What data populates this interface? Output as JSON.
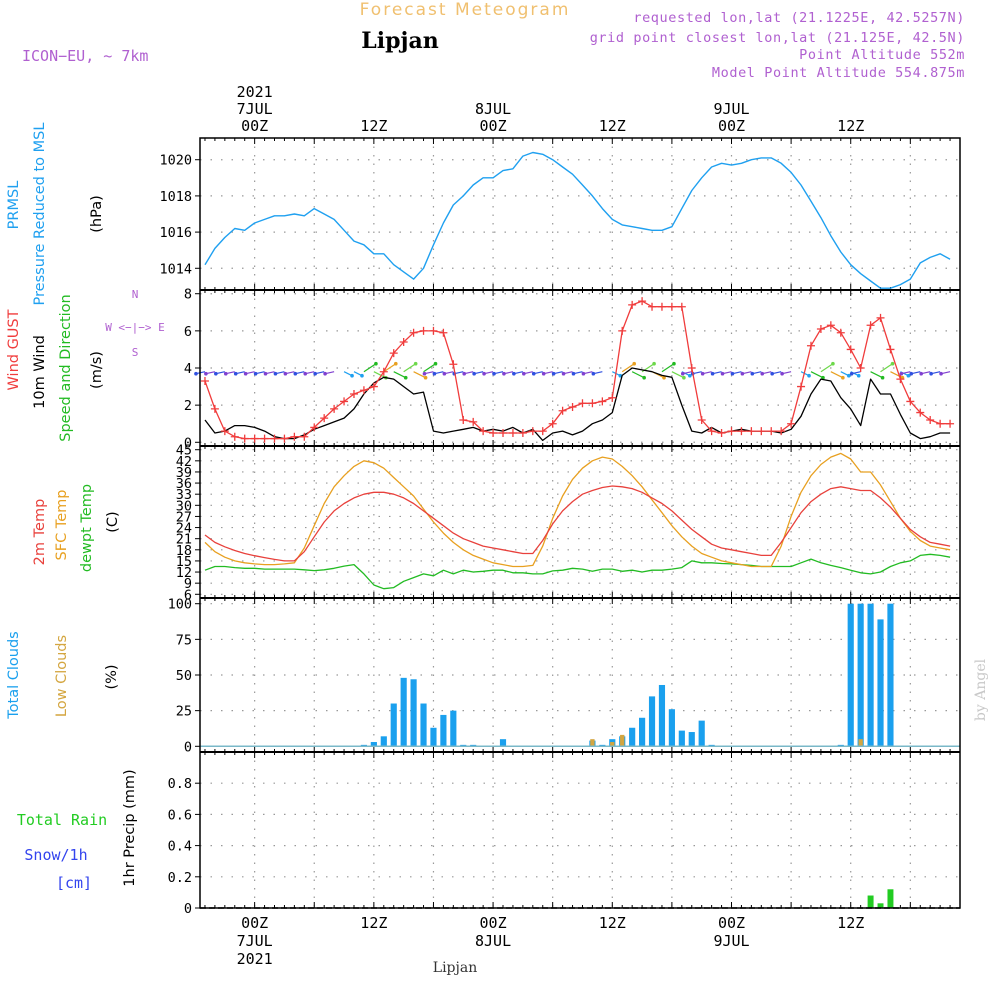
{
  "header": {
    "title": "Forecast Meteogram",
    "location": "Lipjan",
    "model": "ICON−EU, ~ 7km",
    "info_lines": [
      "requested lon,lat (21.1225E, 42.5257N)",
      "grid point closest lon,lat (21.125E, 42.5N)",
      "Point Altitude 552m",
      "Model Point Altitude 554.875m"
    ],
    "footer_location": "Lipjan",
    "credit": "by Angel"
  },
  "time_axis": {
    "top_labels": [
      {
        "hour": 0,
        "lines": [
          "2021",
          "7JUL",
          "00Z"
        ]
      },
      {
        "hour": 12,
        "lines": [
          "12Z"
        ]
      },
      {
        "hour": 24,
        "lines": [
          "8JUL",
          "00Z"
        ]
      },
      {
        "hour": 36,
        "lines": [
          "12Z"
        ]
      },
      {
        "hour": 48,
        "lines": [
          "9JUL",
          "00Z"
        ]
      },
      {
        "hour": 60,
        "lines": [
          "12Z"
        ]
      }
    ],
    "bottom_labels": [
      {
        "hour": 0,
        "lines": [
          "00Z",
          "7JUL",
          "2021"
        ]
      },
      {
        "hour": 12,
        "lines": [
          "12Z"
        ]
      },
      {
        "hour": 24,
        "lines": [
          "00Z",
          "8JUL"
        ]
      },
      {
        "hour": 36,
        "lines": [
          "12Z"
        ]
      },
      {
        "hour": 48,
        "lines": [
          "00Z",
          "9JUL"
        ]
      },
      {
        "hour": 60,
        "lines": [
          "12Z"
        ]
      }
    ],
    "hour_range": [
      -5.5,
      71
    ]
  },
  "colors": {
    "pressure": "#1fa0f0",
    "gust": "#f03c3c",
    "wind": "#000000",
    "temp2m": "#e8413c",
    "sfc_temp": "#e8a020",
    "dewpt": "#22bb22",
    "total_cloud": "#1aa0ee",
    "low_cloud": "#d4a640",
    "rain": "#22cc22",
    "snow": "#3344ee",
    "model": "#b060d0",
    "title": "#f0c070",
    "dir_compass": "#b060d0"
  },
  "chart_data": [
    {
      "type": "line",
      "panel": "pressure",
      "side_labels": [
        "PRMSL",
        "Pressure Reduced to MSL"
      ],
      "unit": "(hPa)",
      "ylim": [
        1012.8,
        1021.2
      ],
      "yticks": [
        1014,
        1016,
        1018,
        1020
      ],
      "grid": true,
      "series": [
        {
          "name": "PRMSL",
          "x": [
            -5,
            -4,
            -3,
            -2,
            -1,
            0,
            1,
            2,
            3,
            4,
            5,
            6,
            7,
            8,
            9,
            10,
            11,
            12,
            13,
            14,
            15,
            16,
            17,
            18,
            19,
            20,
            21,
            22,
            23,
            24,
            25,
            26,
            27,
            28,
            29,
            30,
            31,
            32,
            33,
            34,
            35,
            36,
            37,
            38,
            39,
            40,
            41,
            42,
            43,
            44,
            45,
            46,
            47,
            48,
            49,
            50,
            51,
            52,
            53,
            54,
            55,
            56,
            57,
            58,
            59,
            60,
            61,
            62,
            63,
            64,
            65,
            66,
            67,
            68,
            69,
            70
          ],
          "y": [
            1014.2,
            1015.1,
            1015.7,
            1016.2,
            1016.1,
            1016.5,
            1016.7,
            1016.9,
            1016.9,
            1017.0,
            1016.9,
            1017.3,
            1017.0,
            1016.7,
            1016.1,
            1015.5,
            1015.3,
            1014.8,
            1014.8,
            1014.2,
            1013.8,
            1013.4,
            1014.0,
            1015.3,
            1016.5,
            1017.5,
            1018.0,
            1018.6,
            1019.0,
            1019.0,
            1019.4,
            1019.5,
            1020.2,
            1020.4,
            1020.3,
            1020.0,
            1019.6,
            1019.2,
            1018.6,
            1018.0,
            1017.3,
            1016.7,
            1016.4,
            1016.3,
            1016.2,
            1016.1,
            1016.1,
            1016.3,
            1017.3,
            1018.3,
            1019.0,
            1019.6,
            1019.8,
            1019.7,
            1019.8,
            1020.0,
            1020.1,
            1020.1,
            1019.8,
            1019.3,
            1018.6,
            1017.7,
            1016.8,
            1015.8,
            1014.9,
            1014.2,
            1013.7,
            1013.3,
            1012.9,
            1012.9,
            1013.1,
            1013.4,
            1014.3,
            1014.6,
            1014.8,
            1014.5
          ]
        }
      ]
    },
    {
      "type": "line",
      "panel": "wind",
      "side_labels": [
        "Wind GUST",
        "10m Wind",
        "Speed and Direction"
      ],
      "unit": "(m/s)",
      "compass": [
        "N",
        "W <−|−> E",
        "S"
      ],
      "ylim": [
        -0.2,
        8.2
      ],
      "yticks": [
        0,
        2,
        4,
        6,
        8
      ],
      "grid": true,
      "x": [
        -5,
        -4,
        -3,
        -2,
        -1,
        0,
        1,
        2,
        3,
        4,
        5,
        6,
        7,
        8,
        9,
        10,
        11,
        12,
        13,
        14,
        15,
        16,
        17,
        18,
        19,
        20,
        21,
        22,
        23,
        24,
        25,
        26,
        27,
        28,
        29,
        30,
        31,
        32,
        33,
        34,
        35,
        36,
        37,
        38,
        39,
        40,
        41,
        42,
        43,
        44,
        45,
        46,
        47,
        48,
        49,
        50,
        51,
        52,
        53,
        54,
        55,
        56,
        57,
        58,
        59,
        60,
        61,
        62,
        63,
        64,
        65,
        66,
        67,
        68,
        69,
        70
      ],
      "series": [
        {
          "name": "Wind GUST",
          "y": [
            3.3,
            1.8,
            0.6,
            0.3,
            0.2,
            0.2,
            0.2,
            0.2,
            0.2,
            0.3,
            0.3,
            0.8,
            1.3,
            1.8,
            2.2,
            2.6,
            2.8,
            3.0,
            3.8,
            4.8,
            5.4,
            5.9,
            6.0,
            6.0,
            5.9,
            4.2,
            1.2,
            1.1,
            0.6,
            0.5,
            0.5,
            0.5,
            0.5,
            0.6,
            0.6,
            1.0,
            1.7,
            1.9,
            2.1,
            2.1,
            2.2,
            2.4,
            6.0,
            7.4,
            7.6,
            7.3,
            7.3,
            7.3,
            7.3,
            4.0,
            1.2,
            0.6,
            0.5,
            0.6,
            0.6,
            0.6,
            0.6,
            0.6,
            0.6,
            1.0,
            3.0,
            5.2,
            6.1,
            6.3,
            5.9,
            5.0,
            4.0,
            6.3,
            6.7,
            5.0,
            3.4,
            2.2,
            1.6,
            1.2,
            1.0,
            1.0
          ]
        },
        {
          "name": "10m Wind",
          "y": [
            1.2,
            0.5,
            0.6,
            0.9,
            0.9,
            0.8,
            0.6,
            0.3,
            0.2,
            0.2,
            0.4,
            0.7,
            0.9,
            1.1,
            1.3,
            1.8,
            2.6,
            3.2,
            3.5,
            3.4,
            3.0,
            2.6,
            2.7,
            0.6,
            0.5,
            0.6,
            0.7,
            0.8,
            0.6,
            0.7,
            0.6,
            0.8,
            0.5,
            0.7,
            0.1,
            0.5,
            0.6,
            0.4,
            0.6,
            1.0,
            1.2,
            1.6,
            3.6,
            4.0,
            3.9,
            3.8,
            3.6,
            3.5,
            2.0,
            0.6,
            0.5,
            0.8,
            0.5,
            0.6,
            0.7,
            0.6,
            0.6,
            0.6,
            0.5,
            0.7,
            1.4,
            2.6,
            3.4,
            3.3,
            2.4,
            1.8,
            0.9,
            3.4,
            2.6,
            2.6,
            1.5,
            0.5,
            0.2,
            0.3,
            0.5,
            0.5
          ]
        }
      ],
      "barb_level": 3.8
    },
    {
      "type": "line",
      "panel": "temperature",
      "side_labels": [
        "2m Temp",
        "SFC Temp",
        "dewpt Temp"
      ],
      "unit": "(C)",
      "ylim": [
        5,
        46
      ],
      "yticks": [
        6,
        9,
        12,
        15,
        18,
        21,
        24,
        27,
        30,
        33,
        36,
        39,
        42,
        45
      ],
      "grid": true,
      "x": [
        -5,
        -4,
        -3,
        -2,
        -1,
        0,
        1,
        2,
        3,
        4,
        5,
        6,
        7,
        8,
        9,
        10,
        11,
        12,
        13,
        14,
        15,
        16,
        17,
        18,
        19,
        20,
        21,
        22,
        23,
        24,
        25,
        26,
        27,
        28,
        29,
        30,
        31,
        32,
        33,
        34,
        35,
        36,
        37,
        38,
        39,
        40,
        41,
        42,
        43,
        44,
        45,
        46,
        47,
        48,
        49,
        50,
        51,
        52,
        53,
        54,
        55,
        56,
        57,
        58,
        59,
        60,
        61,
        62,
        63,
        64,
        65,
        66,
        67,
        68,
        69,
        70
      ],
      "series": [
        {
          "name": "2m Temp",
          "y": [
            22,
            20,
            18.8,
            17.8,
            17.0,
            16.4,
            15.9,
            15.4,
            15.0,
            15.0,
            17.5,
            21.5,
            25.5,
            28.5,
            30.5,
            32.0,
            33.0,
            33.5,
            33.5,
            33.0,
            32.0,
            30.5,
            28.5,
            26.5,
            24.5,
            22.5,
            21.0,
            20.0,
            19.0,
            18.5,
            18.0,
            17.5,
            17.0,
            17.0,
            20.5,
            25.0,
            28.5,
            31.0,
            33.0,
            34.0,
            34.8,
            35.2,
            35.0,
            34.5,
            33.5,
            32.0,
            30.5,
            28.5,
            26.0,
            23.5,
            21.5,
            19.5,
            18.5,
            18.0,
            17.5,
            17.0,
            16.5,
            16.5,
            20.0,
            24.0,
            28.0,
            31.0,
            33.0,
            34.5,
            35.0,
            34.5,
            34.0,
            34.0,
            32.0,
            29.5,
            26.5,
            23.5,
            21.5,
            20.0,
            19.5,
            19.0
          ]
        },
        {
          "name": "SFC Temp",
          "y": [
            20,
            17.5,
            16.0,
            15.0,
            14.5,
            14.2,
            14.0,
            14.0,
            14.2,
            14.5,
            18.5,
            24.5,
            30.5,
            35.0,
            38.0,
            40.5,
            42.0,
            41.5,
            40.0,
            37.5,
            35.0,
            32.5,
            29.0,
            25.5,
            22.5,
            20.0,
            18.0,
            16.5,
            15.5,
            14.5,
            14.0,
            13.5,
            13.5,
            13.8,
            19.0,
            26.5,
            32.5,
            37.0,
            40.0,
            42.0,
            43.0,
            42.5,
            40.5,
            38.0,
            35.0,
            31.5,
            28.0,
            24.5,
            21.5,
            19.0,
            17.0,
            16.0,
            15.0,
            14.5,
            14.0,
            13.5,
            13.5,
            13.5,
            19.0,
            27.0,
            33.5,
            38.0,
            41.0,
            43.0,
            44.0,
            42.5,
            39.0,
            39.0,
            35.5,
            31.0,
            26.5,
            23.0,
            20.5,
            19.0,
            18.5,
            18.0
          ]
        },
        {
          "name": "dewpt Temp",
          "y": [
            12.5,
            13.5,
            13.5,
            13.2,
            13.0,
            13.0,
            12.8,
            12.8,
            12.8,
            12.8,
            12.6,
            12.4,
            12.6,
            13.0,
            13.6,
            14.0,
            11.5,
            8.5,
            7.5,
            7.8,
            9.5,
            10.5,
            11.5,
            11.0,
            12.5,
            11.5,
            12.5,
            12.0,
            12.2,
            12.5,
            12.5,
            11.8,
            11.8,
            11.5,
            11.5,
            12.3,
            12.5,
            13.0,
            12.8,
            12.2,
            12.8,
            12.8,
            12.2,
            12.5,
            12.0,
            12.5,
            12.5,
            12.8,
            13.2,
            15.0,
            14.5,
            14.5,
            14.3,
            14.2,
            14.0,
            13.8,
            13.5,
            13.5,
            13.5,
            13.5,
            14.5,
            15.5,
            14.5,
            13.8,
            13.2,
            12.5,
            11.8,
            11.5,
            12.0,
            13.5,
            14.5,
            15.0,
            16.5,
            16.8,
            16.5,
            16.0
          ]
        }
      ]
    },
    {
      "type": "bar",
      "panel": "clouds",
      "side_labels": [
        "Total Clouds",
        "Low Clouds"
      ],
      "unit": "(%)",
      "ylim": [
        -4,
        104
      ],
      "yticks": [
        0,
        25,
        50,
        75,
        100
      ],
      "grid": true,
      "series": [
        {
          "name": "Total Clouds",
          "x": [
            11,
            12,
            13,
            14,
            15,
            16,
            17,
            18,
            19,
            20,
            21,
            22,
            25,
            34,
            35,
            36,
            37,
            38,
            39,
            40,
            41,
            42,
            43,
            44,
            45,
            46,
            59,
            60,
            61,
            62,
            63,
            64
          ],
          "y": [
            1,
            3,
            7,
            30,
            48,
            47,
            30,
            13,
            22,
            25,
            1,
            1,
            5,
            4,
            1,
            5,
            7,
            13,
            20,
            35,
            43,
            26,
            11,
            10,
            18,
            1,
            1,
            100,
            100,
            100,
            89,
            100
          ]
        },
        {
          "name": "Low Clouds",
          "x": [
            34,
            36,
            37,
            61
          ],
          "y": [
            5,
            3,
            8,
            5
          ]
        }
      ]
    },
    {
      "type": "bar",
      "panel": "precip",
      "side_labels": [
        "Total Rain",
        "Snow/1h",
        "[cm]"
      ],
      "unit": "1hr Precip (mm)",
      "ylim": [
        0,
        1.0
      ],
      "yticks": [
        0,
        0.2,
        0.4,
        0.6,
        0.8
      ],
      "ytick_labels": [
        "0",
        "0.2",
        "0.4",
        "0.6",
        "0.8"
      ],
      "grid": true,
      "series": [
        {
          "name": "Total Rain",
          "x": [
            62,
            63,
            64
          ],
          "y": [
            0.08,
            0.03,
            0.12
          ]
        }
      ]
    }
  ]
}
